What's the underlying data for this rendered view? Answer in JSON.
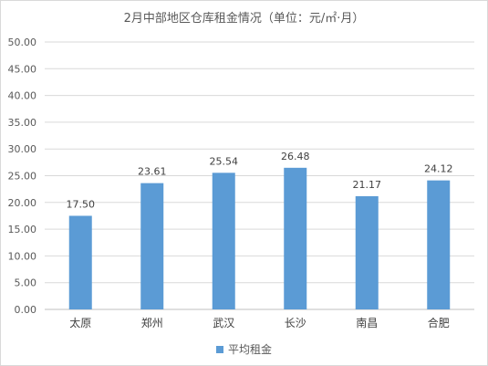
{
  "chart_data": {
    "type": "bar",
    "title": "2月中部地区仓库租金情况（单位：元/㎡·月）",
    "xlabel": "",
    "ylabel": "",
    "categories": [
      "太原",
      "郑州",
      "武汉",
      "长沙",
      "南昌",
      "合肥"
    ],
    "series": [
      {
        "name": "平均租金",
        "values": [
          17.5,
          23.61,
          25.54,
          26.48,
          21.17,
          24.12
        ],
        "color": "#5b9bd5"
      }
    ],
    "data_labels": [
      "17.50",
      "23.61",
      "25.54",
      "26.48",
      "21.17",
      "24.12"
    ],
    "ylim": [
      0,
      50
    ],
    "yticks": [
      "0.00",
      "5.00",
      "10.00",
      "15.00",
      "20.00",
      "25.00",
      "30.00",
      "35.00",
      "40.00",
      "45.00",
      "50.00"
    ],
    "grid": true,
    "legend_position": "bottom"
  }
}
